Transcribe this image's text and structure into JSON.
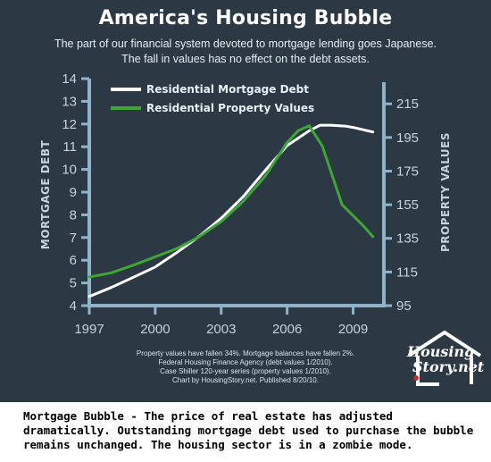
{
  "title": "America's Housing Bubble",
  "subtitle_lines": [
    "The part of our financial system devoted to mortgage lending goes Japanese.",
    "The fall in values has no effect on the debt assets."
  ],
  "notes": [
    "Property values have fallen 34%. Mortgage balances have fallen 2%.",
    "Federal Housing Finance Agency (debt values 1/2010).",
    "Case Shiller 120-year series (property values 1/2010).",
    "Chart by HousingStory.net. Published 8/20/10."
  ],
  "logo": {
    "line1": "Housing",
    "line2": "Story.net",
    "icon": "house-outline-icon"
  },
  "caption": "Mortgage Bubble - The price of real estate has adjusted dramatically. Outstanding mortgage debt used to purchase the bubble remains unchanged. The housing sector is in a zombie mode.",
  "colors": {
    "background": "#2c3945",
    "axis": "#8fb3c9",
    "debt": "#ffffff",
    "values": "#3fa535"
  },
  "chart_data": {
    "type": "line",
    "x_ticks": [
      "1997",
      "2000",
      "2003",
      "2006",
      "2009"
    ],
    "xlim": [
      1997,
      2010.4
    ],
    "left_axis": {
      "label": "MORTGAGE DEBT",
      "ylim": [
        4,
        14
      ],
      "ticks": [
        "4",
        "5",
        "6",
        "7",
        "8",
        "9",
        "10",
        "11",
        "12",
        "13",
        "14"
      ]
    },
    "right_axis": {
      "label": "PROPERTY VALUES",
      "ylim": [
        95,
        230
      ],
      "ticks": [
        "95",
        "115",
        "135",
        "155",
        "175",
        "195",
        "215"
      ]
    },
    "legend_position": "top-left",
    "grid": false,
    "series": [
      {
        "name": "Residential Mortgage Debt",
        "axis": "left",
        "color": "#ffffff",
        "x": [
          1997,
          1998,
          1999,
          2000,
          2001,
          2002,
          2003,
          2004,
          2005,
          2006,
          2007,
          2007.5,
          2008,
          2008.7,
          2009,
          2009.9
        ],
        "values": [
          4.4,
          4.8,
          5.25,
          5.7,
          6.35,
          7.05,
          7.85,
          8.8,
          9.95,
          11.05,
          11.7,
          11.95,
          11.95,
          11.9,
          11.85,
          11.65
        ]
      },
      {
        "name": "Residential Property Values",
        "axis": "right",
        "color": "#3fa535",
        "x": [
          1997,
          1998,
          1999,
          2000,
          2001,
          2002,
          2003,
          2004,
          2005,
          2006,
          2006.5,
          2007,
          2007.6,
          2008.5,
          2009.5,
          2009.9
        ],
        "values": [
          112,
          114.5,
          119,
          124,
          129,
          136,
          145,
          157,
          172,
          192,
          199,
          202,
          190,
          155,
          142,
          136
        ]
      }
    ]
  }
}
